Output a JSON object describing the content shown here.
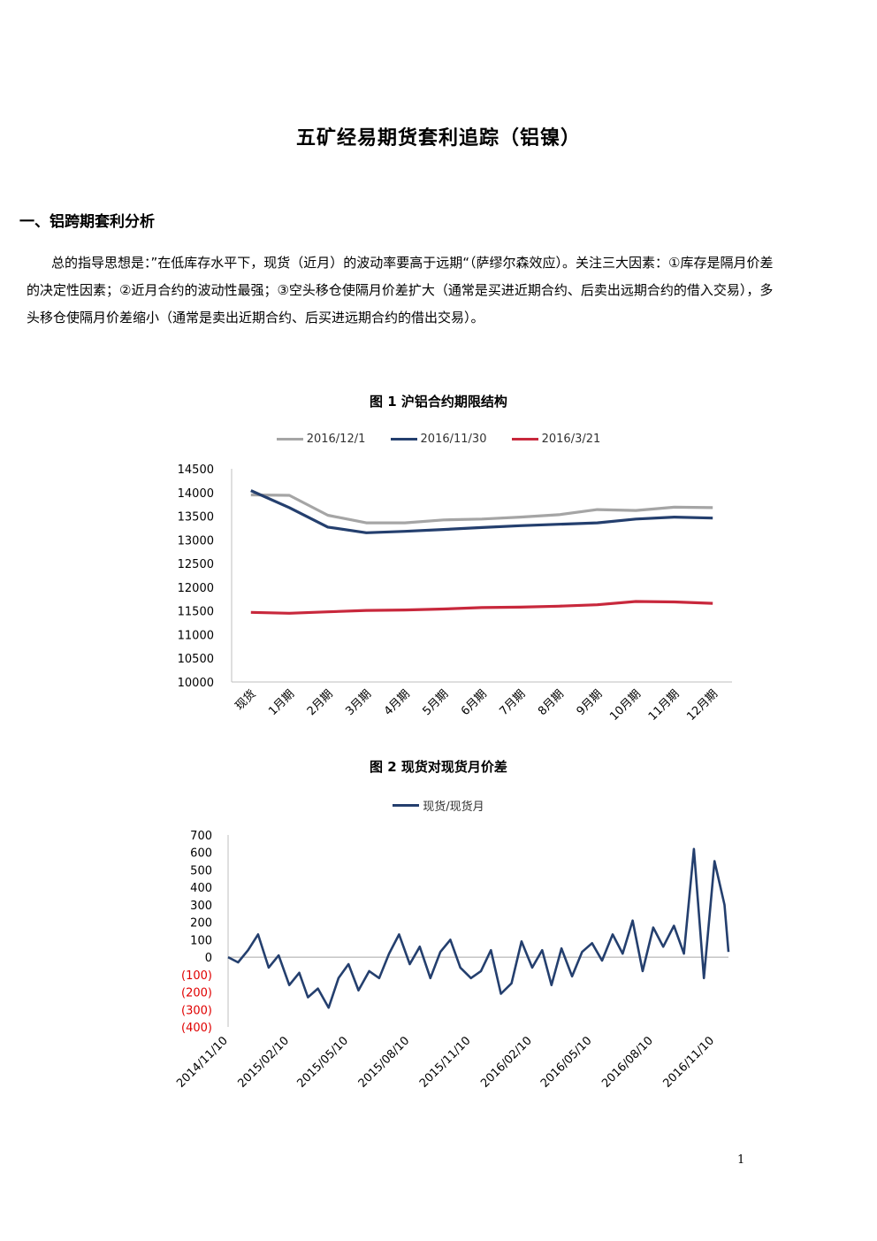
{
  "document": {
    "title": "五矿经易期货套利追踪（铝镍）",
    "section1_heading": "一、铝跨期套利分析",
    "paragraphs": [
      "总的指导思想是：”在低库存水平下，现货（近月）的波动率要高于远期“（萨缪尔森效应）。关注三大因素：①库存是隔月价差的决定性因素；②近月合约的波动性最强；③空头移仓使隔月价差扩大（通常是买进近期合约、后卖出远期合约的借入交易），多头移仓使隔月价差缩小（通常是卖出近期合约、后买进远期合约的借出交易）。"
    ],
    "page_number": "1"
  },
  "chart_data": [
    {
      "type": "line",
      "title": "图 1  沪铝合约期限结构",
      "categories": [
        "现货",
        "1月期",
        "2月期",
        "3月期",
        "4月期",
        "5月期",
        "6月期",
        "7月期",
        "8月期",
        "9月期",
        "10月期",
        "11月期",
        "12月期"
      ],
      "ylim": [
        10000,
        14500
      ],
      "yticks": [
        10000,
        10500,
        11000,
        11500,
        12000,
        12500,
        13000,
        13500,
        14000,
        14500
      ],
      "legend_position": "top",
      "grid": false,
      "series": [
        {
          "name": "2016/12/1",
          "color": "#a5a5a5",
          "values": [
            13950,
            13940,
            13520,
            13360,
            13360,
            13420,
            13440,
            13480,
            13530,
            13640,
            13620,
            13690,
            13680
          ]
        },
        {
          "name": "2016/11/30",
          "color": "#243f6e",
          "values": [
            14040,
            13680,
            13270,
            13150,
            13180,
            13220,
            13260,
            13300,
            13330,
            13360,
            13440,
            13480,
            13460
          ]
        },
        {
          "name": "2016/3/21",
          "color": "#c8283c",
          "values": [
            11470,
            11450,
            11480,
            11510,
            11520,
            11540,
            11570,
            11580,
            11600,
            11630,
            11700,
            11690,
            11660
          ]
        }
      ]
    },
    {
      "type": "line",
      "title": "图 2  现货对现货月价差",
      "ylim": [
        -400,
        700
      ],
      "yticks": [
        700,
        600,
        500,
        400,
        300,
        200,
        100,
        0,
        -100,
        -200,
        -300,
        -400
      ],
      "ytick_labels": [
        "700",
        "600",
        "500",
        "400",
        "300",
        "200",
        "100",
        "0",
        "(100)",
        "(200)",
        "(300)",
        "(400)"
      ],
      "negative_label_color": "#e00000",
      "x_labels": [
        "2014/11/10",
        "2015/02/10",
        "2015/05/10",
        "2015/08/10",
        "2015/11/10",
        "2016/02/10",
        "2016/05/10",
        "2016/08/10",
        "2016/11/10"
      ],
      "legend_position": "top",
      "grid": false,
      "series": [
        {
          "name": "现货/现货月",
          "color": "#243f6e",
          "x": [
            "2014/11/10",
            "2014/11/25",
            "2014/12/10",
            "2014/12/25",
            "2015/01/10",
            "2015/01/25",
            "2015/02/10",
            "2015/02/25",
            "2015/03/10",
            "2015/03/25",
            "2015/04/10",
            "2015/04/25",
            "2015/05/10",
            "2015/05/25",
            "2015/06/10",
            "2015/06/25",
            "2015/07/10",
            "2015/07/25",
            "2015/08/10",
            "2015/08/25",
            "2015/09/10",
            "2015/09/25",
            "2015/10/10",
            "2015/10/25",
            "2015/11/10",
            "2015/11/25",
            "2015/12/10",
            "2015/12/25",
            "2016/01/10",
            "2016/01/25",
            "2016/02/10",
            "2016/02/25",
            "2016/03/10",
            "2016/03/25",
            "2016/04/10",
            "2016/04/25",
            "2016/05/10",
            "2016/05/25",
            "2016/06/10",
            "2016/06/25",
            "2016/07/10",
            "2016/07/25",
            "2016/08/10",
            "2016/08/25",
            "2016/09/10",
            "2016/09/25",
            "2016/10/10",
            "2016/10/25",
            "2016/11/10",
            "2016/11/25",
            "2016/12/01"
          ],
          "values": [
            0,
            -30,
            40,
            130,
            -60,
            10,
            -160,
            -90,
            -230,
            -180,
            -290,
            -120,
            -40,
            -190,
            -80,
            -120,
            20,
            130,
            -40,
            60,
            -120,
            30,
            100,
            -60,
            -120,
            -80,
            40,
            -210,
            -150,
            90,
            -60,
            40,
            -160,
            50,
            -110,
            30,
            80,
            -20,
            130,
            20,
            210,
            -80,
            170,
            60,
            180,
            20,
            620,
            -120,
            550,
            300,
            30
          ]
        }
      ]
    }
  ]
}
